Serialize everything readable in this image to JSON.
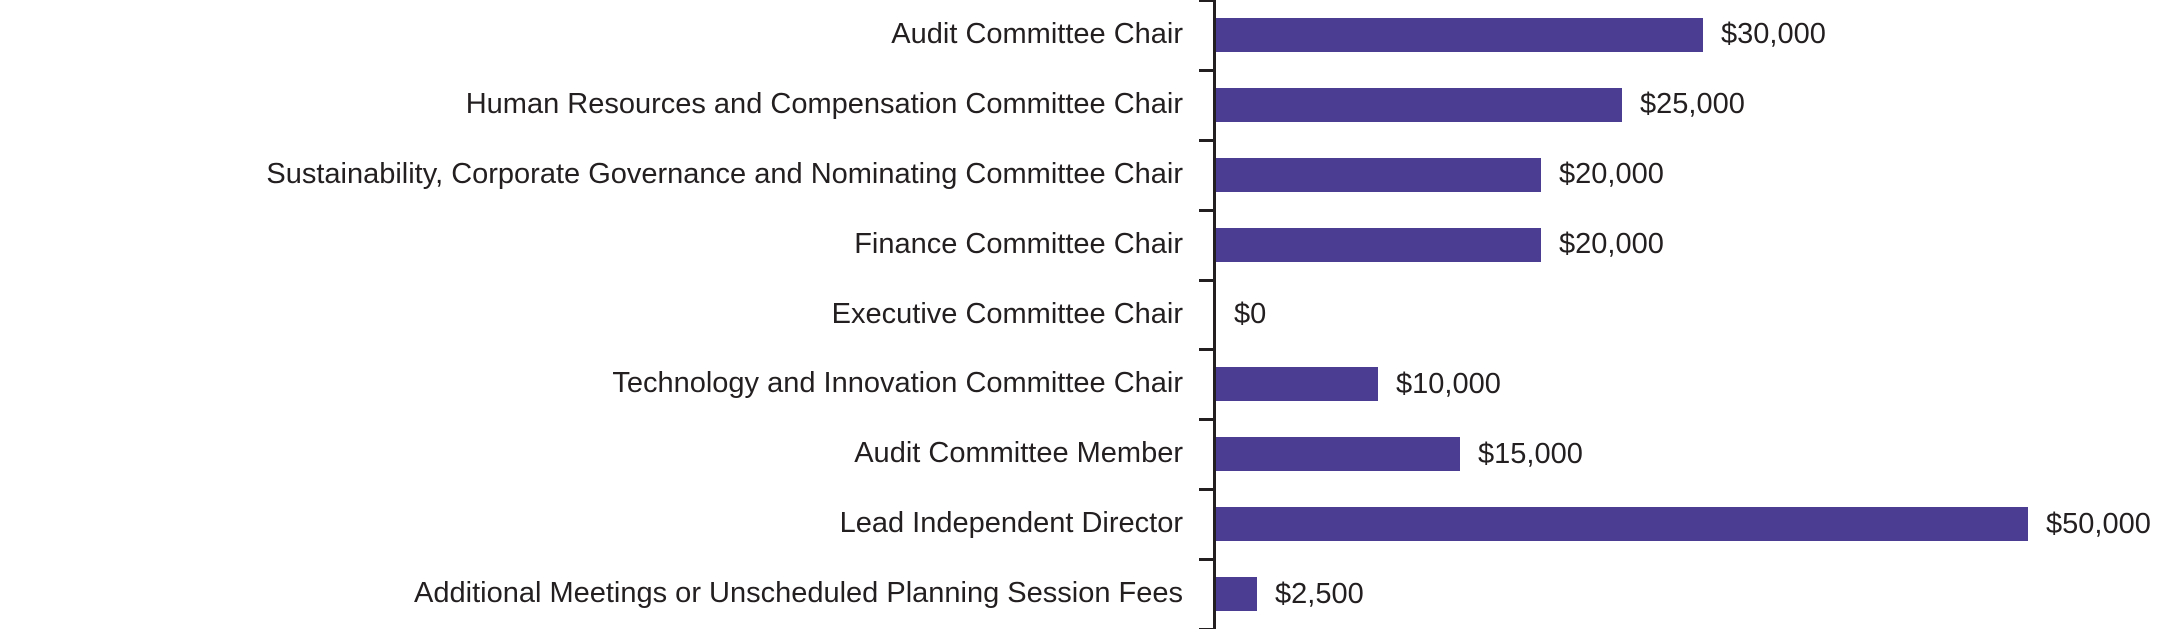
{
  "chart_data": {
    "type": "bar",
    "orientation": "horizontal",
    "title": "",
    "xlabel": "",
    "ylabel": "",
    "xmax": 50000,
    "grid": false,
    "legend": false,
    "bar_color": "#4A3D92",
    "text_color": "#231F20",
    "axis_color": "#231F20",
    "categories": [
      "Audit Committee Chair",
      "Human Resources and Compensation Committee Chair",
      "Sustainability, Corporate Governance and Nominating Committee Chair",
      "Finance Committee Chair",
      "Executive Committee Chair",
      "Technology and Innovation Committee Chair",
      "Audit Committee Member",
      "Lead Independent Director",
      "Additional Meetings or Unscheduled Planning Session Fees"
    ],
    "values": [
      30000,
      25000,
      20000,
      20000,
      0,
      10000,
      15000,
      50000,
      2500
    ],
    "items": [
      {
        "label": "Audit Committee Chair",
        "value": 30000,
        "value_label": "$30,000"
      },
      {
        "label": "Human Resources and Compensation Committee Chair",
        "value": 25000,
        "value_label": "$25,000"
      },
      {
        "label": "Sustainability, Corporate Governance and Nominating Committee Chair",
        "value": 20000,
        "value_label": "$20,000"
      },
      {
        "label": "Finance Committee Chair",
        "value": 20000,
        "value_label": "$20,000"
      },
      {
        "label": "Executive Committee Chair",
        "value": 0,
        "value_label": "$0"
      },
      {
        "label": "Technology and Innovation Committee Chair",
        "value": 10000,
        "value_label": "$10,000"
      },
      {
        "label": "Audit Committee Member",
        "value": 15000,
        "value_label": "$15,000"
      },
      {
        "label": "Lead Independent Director",
        "value": 50000,
        "value_label": "$50,000"
      },
      {
        "label": "Additional Meetings or Unscheduled Planning Session Fees",
        "value": 2500,
        "value_label": "$2,500"
      }
    ]
  }
}
